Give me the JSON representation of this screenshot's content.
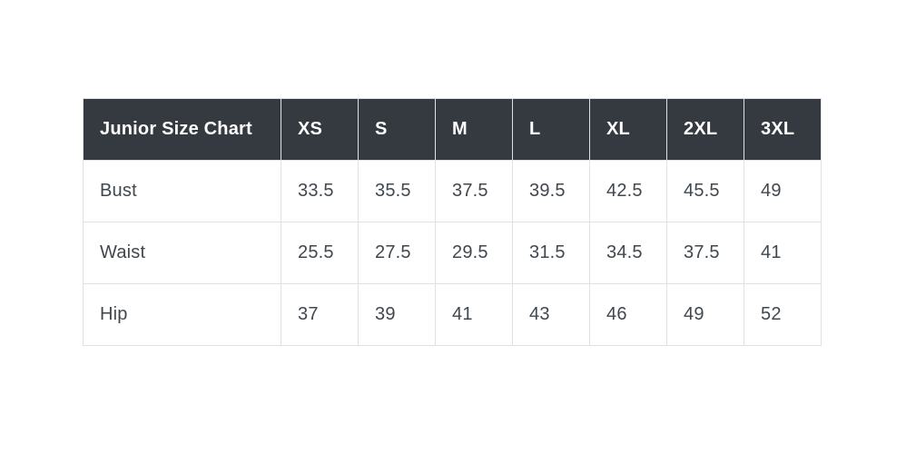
{
  "table": {
    "header": {
      "title": "Junior Size Chart",
      "sizes": [
        "XS",
        "S",
        "M",
        "L",
        "XL",
        "2XL",
        "3XL"
      ]
    },
    "rows": [
      {
        "label": "Bust",
        "values": [
          "33.5",
          "35.5",
          "37.5",
          "39.5",
          "42.5",
          "45.5",
          "49"
        ]
      },
      {
        "label": "Waist",
        "values": [
          "25.5",
          "27.5",
          "29.5",
          "31.5",
          "34.5",
          "37.5",
          "41"
        ]
      },
      {
        "label": "Hip",
        "values": [
          "37",
          "39",
          "41",
          "43",
          "46",
          "49",
          "52"
        ]
      }
    ],
    "colors": {
      "header_background": "#343a40",
      "header_text": "#ffffff",
      "body_text": "#40474e",
      "border": "#dee2e6",
      "row_background": "#ffffff"
    }
  },
  "chart_data": {
    "type": "table",
    "title": "Junior Size Chart",
    "columns": [
      "Junior Size Chart",
      "XS",
      "S",
      "M",
      "L",
      "XL",
      "2XL",
      "3XL"
    ],
    "rows": [
      [
        "Bust",
        33.5,
        35.5,
        37.5,
        39.5,
        42.5,
        45.5,
        49
      ],
      [
        "Waist",
        25.5,
        27.5,
        29.5,
        31.5,
        34.5,
        37.5,
        41
      ],
      [
        "Hip",
        37,
        39,
        41,
        43,
        46,
        49,
        52
      ]
    ]
  }
}
